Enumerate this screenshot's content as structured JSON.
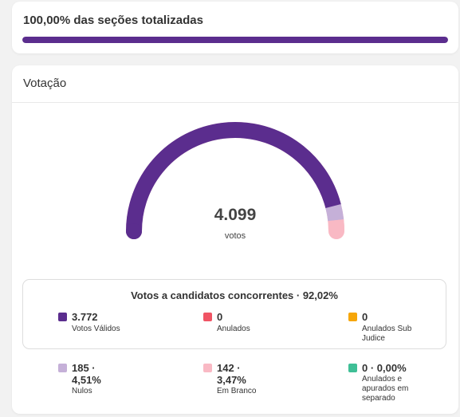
{
  "progress": {
    "title": "100,00% das seções totalizadas",
    "fraction": 1.0,
    "color": "#5b2d8e"
  },
  "votacao": {
    "title": "Votação",
    "total_value": "4.099",
    "total_unit": "votos",
    "gauge": {
      "segments": [
        {
          "name": "validos",
          "fraction": 0.9202,
          "color": "#5b2d8e"
        },
        {
          "name": "nulos",
          "fraction": 0.0451,
          "color": "#c5b0d8"
        },
        {
          "name": "em_branco",
          "fraction": 0.0347,
          "color": "#f9b9c4"
        }
      ]
    },
    "concorrentes": {
      "title": "Votos a candidatos concorrentes · 92,02%",
      "stats": [
        {
          "value": "3.772",
          "label": "Votos Válidos",
          "color": "#5b2d8e"
        },
        {
          "value": "0",
          "label": "Anulados",
          "color": "#f05464"
        },
        {
          "value": "0",
          "label": "Anulados Sub Judice",
          "color": "#f6a609"
        }
      ]
    },
    "outros": [
      {
        "value": "185 · 4,51%",
        "label": "Nulos",
        "color": "#c5b0d8"
      },
      {
        "value": "142 · 3,47%",
        "label": "Em Branco",
        "color": "#f9b9c4"
      },
      {
        "value": "0 · 0,00%",
        "label": "Anulados e apurados em separado",
        "color": "#3fbf96"
      }
    ]
  }
}
